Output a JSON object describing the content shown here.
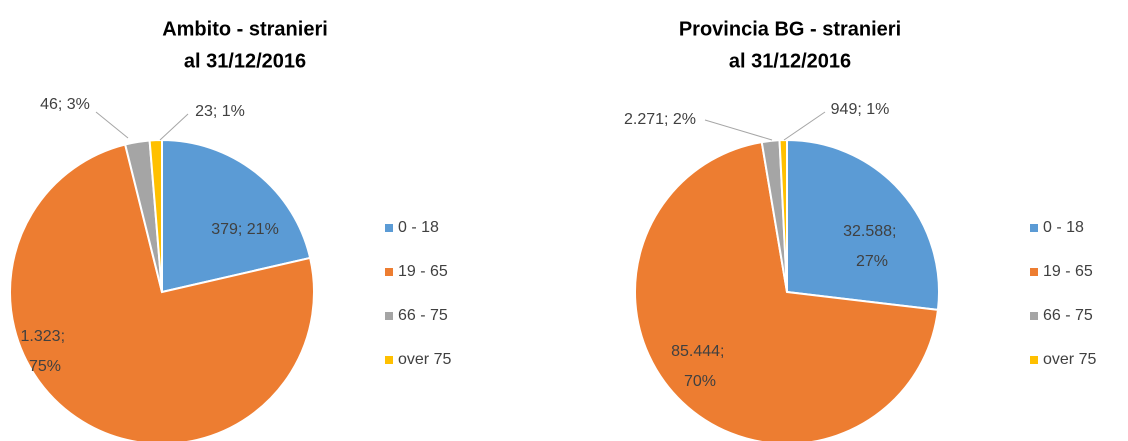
{
  "chart_data": [
    {
      "type": "pie",
      "title": "Ambito - stranieri",
      "subtitle": "al 31/12/2016",
      "categories": [
        "0 - 18",
        "19 - 65",
        "66 - 75",
        "over 75"
      ],
      "values": [
        379,
        1323,
        46,
        23
      ],
      "value_labels": [
        "379; 21%",
        "1.323; 75%",
        "46; 3%",
        "23; 1%"
      ],
      "colors": [
        "#5b9bd5",
        "#ed7d31",
        "#a5a5a5",
        "#ffc000"
      ],
      "legend": "right"
    },
    {
      "type": "pie",
      "title": "Provincia BG - stranieri",
      "subtitle": "al 31/12/2016",
      "categories": [
        "0 - 18",
        "19 - 65",
        "66 - 75",
        "over 75"
      ],
      "values": [
        32588,
        85444,
        2271,
        949
      ],
      "value_labels": [
        "32.588; 27%",
        "85.444; 70%",
        "2.271; 2%",
        "949; 1%"
      ],
      "colors": [
        "#5b9bd5",
        "#ed7d31",
        "#a5a5a5",
        "#ffc000"
      ],
      "legend": "right"
    }
  ]
}
